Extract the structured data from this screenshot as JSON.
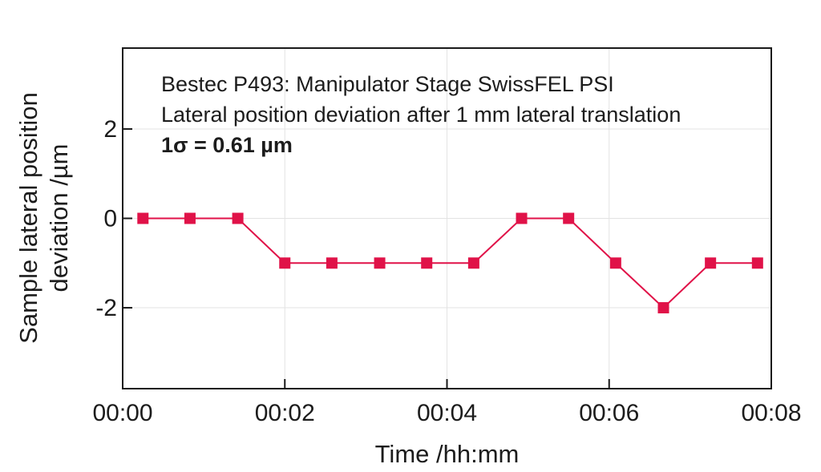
{
  "colors": {
    "accent": "#e01248",
    "frame": "#1a1a1a",
    "grid": "#e3e3e3",
    "text": "#1c1c1c"
  },
  "chart_data": {
    "type": "line",
    "title_lines": [
      "Bestec P493: Manipulator Stage SwissFEL PSI",
      "Lateral position deviation after 1 mm lateral translation"
    ],
    "sigma_annotation": "1σ = 0.61 µm",
    "xlabel": "Time /hh:mm",
    "ylabel_lines": [
      "Sample lateral position",
      "deviation /µm"
    ],
    "x_unit": "minutes",
    "xlim": [
      0,
      8
    ],
    "ylim": [
      -3.81,
      3.81
    ],
    "grid": true,
    "x_ticks": [
      {
        "value": 0,
        "label": "00:00"
      },
      {
        "value": 2,
        "label": "00:02"
      },
      {
        "value": 4,
        "label": "00:04"
      },
      {
        "value": 6,
        "label": "00:06"
      },
      {
        "value": 8,
        "label": "00:08"
      }
    ],
    "y_ticks": [
      {
        "value": -2,
        "label": "-2"
      },
      {
        "value": 0,
        "label": "0"
      },
      {
        "value": 2,
        "label": "2"
      }
    ],
    "series": [
      {
        "name": "lateral-position-deviation",
        "color": "#e01248",
        "marker": "square",
        "points": [
          {
            "t_min": 0.25,
            "deviation_um": 0
          },
          {
            "t_min": 0.83,
            "deviation_um": 0
          },
          {
            "t_min": 1.42,
            "deviation_um": 0
          },
          {
            "t_min": 2.0,
            "deviation_um": -1
          },
          {
            "t_min": 2.58,
            "deviation_um": -1
          },
          {
            "t_min": 3.17,
            "deviation_um": -1
          },
          {
            "t_min": 3.75,
            "deviation_um": -1
          },
          {
            "t_min": 4.33,
            "deviation_um": -1
          },
          {
            "t_min": 4.92,
            "deviation_um": 0
          },
          {
            "t_min": 5.5,
            "deviation_um": 0
          },
          {
            "t_min": 6.08,
            "deviation_um": -1
          },
          {
            "t_min": 6.67,
            "deviation_um": -2
          },
          {
            "t_min": 7.25,
            "deviation_um": -1
          },
          {
            "t_min": 7.83,
            "deviation_um": -1
          }
        ]
      }
    ]
  }
}
